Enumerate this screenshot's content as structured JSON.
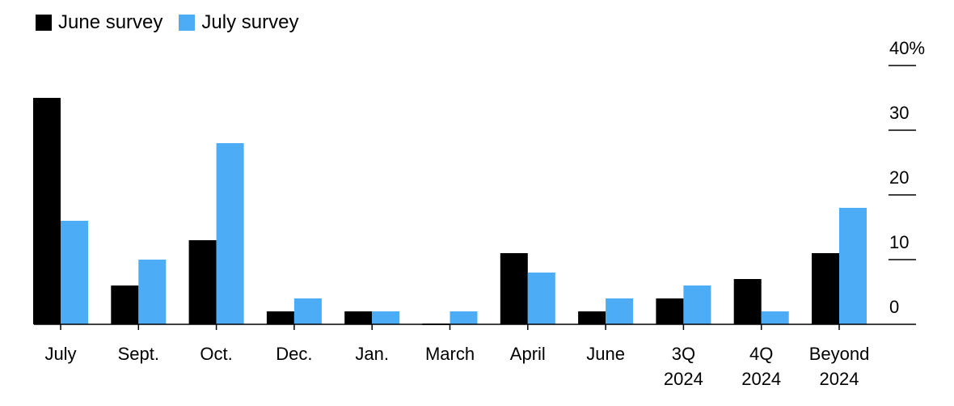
{
  "chart_data": {
    "type": "bar",
    "categories": [
      {
        "lines": [
          "July"
        ]
      },
      {
        "lines": [
          "Sept."
        ]
      },
      {
        "lines": [
          "Oct."
        ]
      },
      {
        "lines": [
          "Dec."
        ]
      },
      {
        "lines": [
          "Jan."
        ]
      },
      {
        "lines": [
          "March"
        ]
      },
      {
        "lines": [
          "April"
        ]
      },
      {
        "lines": [
          "June"
        ]
      },
      {
        "lines": [
          "3Q",
          "2024"
        ]
      },
      {
        "lines": [
          "4Q",
          "2024"
        ]
      },
      {
        "lines": [
          "Beyond",
          "2024"
        ]
      }
    ],
    "series": [
      {
        "name": "June survey",
        "color": "#000000",
        "values": [
          35,
          6,
          13,
          2,
          2,
          0,
          11,
          2,
          4,
          7,
          11
        ]
      },
      {
        "name": "July survey",
        "color": "#4DACF6",
        "values": [
          16,
          10,
          28,
          4,
          2,
          2,
          8,
          4,
          6,
          2,
          18
        ]
      }
    ],
    "y_axis": {
      "ticks": [
        {
          "value": 40,
          "label": "40%"
        },
        {
          "value": 30,
          "label": "30"
        },
        {
          "value": 20,
          "label": "20"
        },
        {
          "value": 10,
          "label": "10"
        },
        {
          "value": 0,
          "label": "0"
        }
      ],
      "ylim": [
        0,
        40
      ],
      "position": "right"
    },
    "grid": false,
    "legend_position": "top-left"
  }
}
